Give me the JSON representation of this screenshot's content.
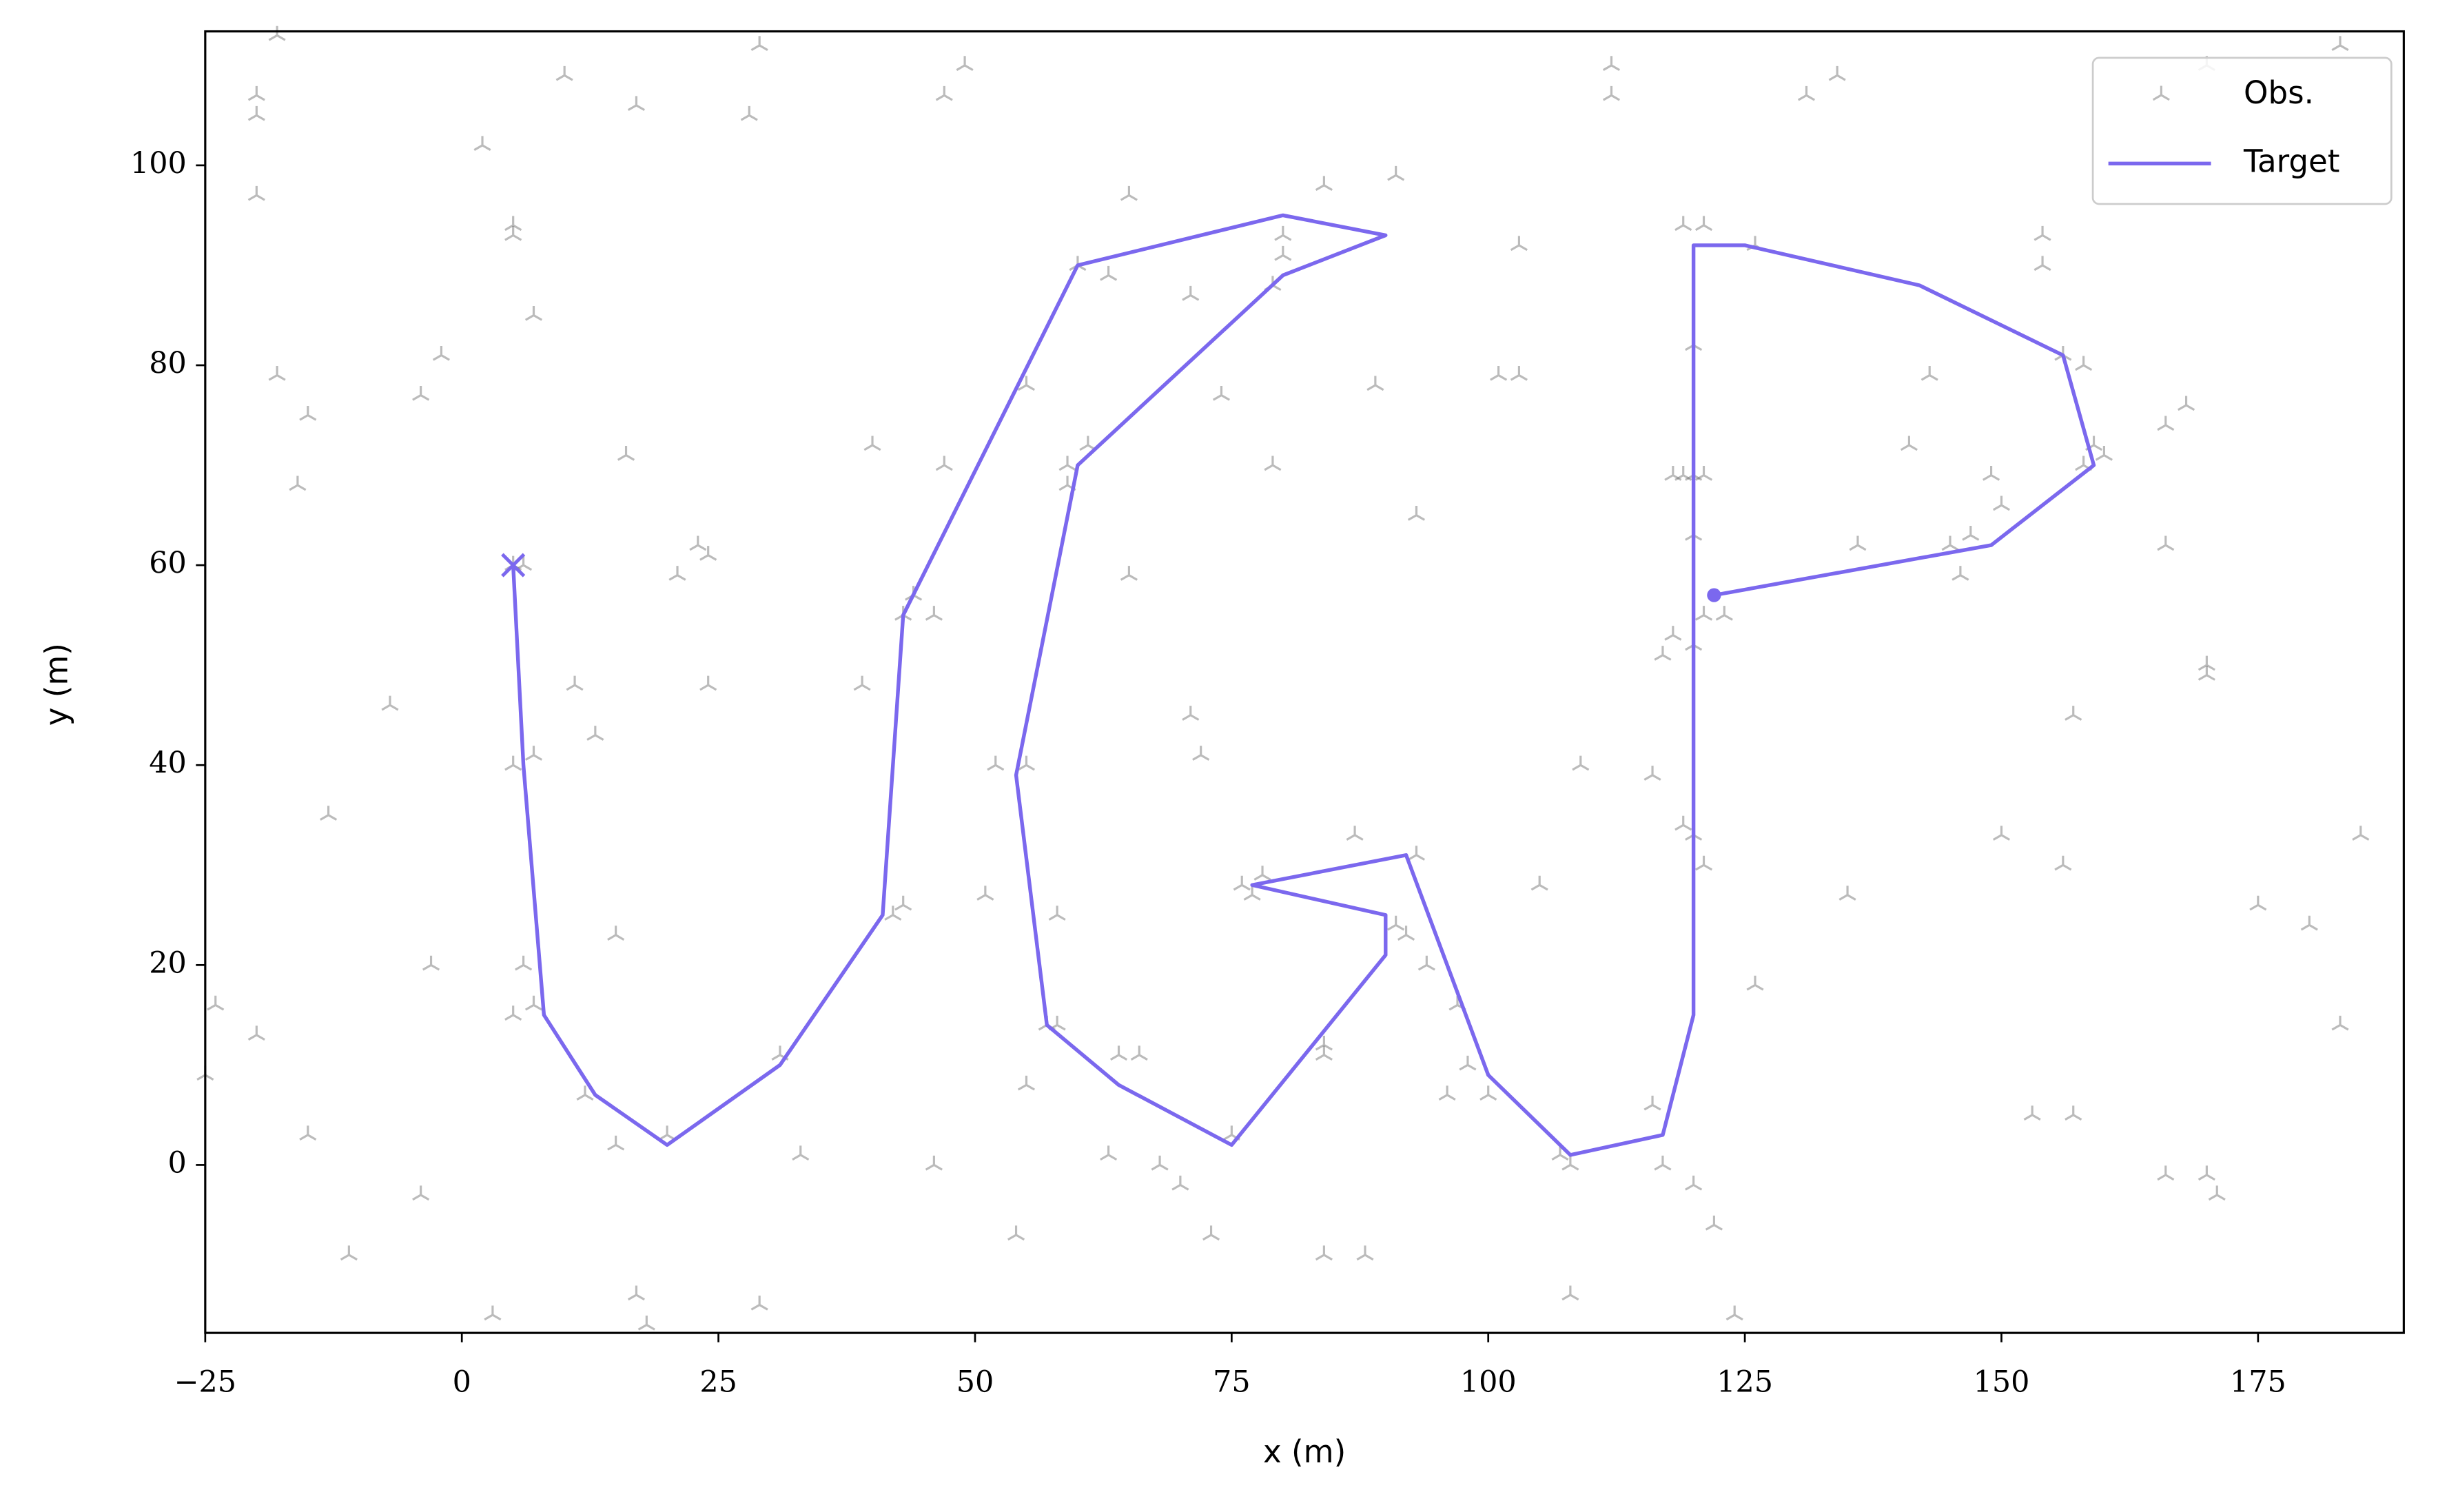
{
  "chart_data": {
    "type": "scatter",
    "xlabel": "x (m)",
    "ylabel": "y (m)",
    "xlim": [
      -25,
      189.2
    ],
    "ylim": [
      -16.8,
      113.4
    ],
    "xticks": [
      {
        "value": -25,
        "label": "−25"
      },
      0,
      25,
      50,
      75,
      100,
      125,
      150,
      175
    ],
    "yticks": [
      0,
      20,
      40,
      60,
      80,
      100
    ],
    "legend": "upper right",
    "series": [
      {
        "name": "Obs.",
        "type": "scatter",
        "marker": "tri_up",
        "color": "#555555",
        "x": [
          -18,
          -20,
          -20,
          -20,
          -18,
          -15,
          -16,
          -13,
          -7,
          -24,
          -20,
          -25,
          -15,
          -11,
          -4,
          -3,
          -4,
          -2,
          2,
          5,
          5,
          7,
          5,
          6,
          5,
          7,
          5,
          7,
          6,
          11,
          13,
          12,
          15,
          15,
          16,
          17,
          21,
          23,
          24,
          24,
          28,
          29,
          20,
          31,
          17,
          18,
          29,
          3,
          10,
          33,
          39,
          40,
          42,
          43,
          43,
          44,
          46,
          46,
          47,
          47,
          49,
          51,
          52,
          55,
          54,
          55,
          55,
          57,
          58,
          58,
          59,
          61,
          59,
          60,
          63,
          63,
          64,
          65,
          66,
          65,
          68,
          70,
          71,
          71,
          72,
          73,
          74,
          75,
          76,
          77,
          78,
          79,
          79,
          80,
          80,
          84,
          84,
          84,
          87,
          88,
          89,
          91,
          92,
          93,
          94,
          91,
          93,
          96,
          97,
          98,
          100,
          101,
          103,
          103,
          105,
          107,
          108,
          108,
          109,
          112,
          112,
          116,
          116,
          117,
          118,
          119,
          120,
          121,
          119,
          120,
          121,
          120,
          121,
          117,
          118,
          123,
          120,
          120,
          119,
          121,
          122,
          126,
          126,
          131,
          134,
          135,
          141,
          143,
          145,
          147,
          149,
          150,
          150,
          154,
          154,
          153,
          156,
          157,
          158,
          156,
          158,
          159,
          160,
          166,
          166,
          168,
          170,
          170,
          171,
          170,
          166,
          170,
          175,
          180,
          183,
          185,
          183,
          124,
          120,
          84,
          136,
          146,
          157
        ],
        "y": [
          113,
          107,
          105,
          97,
          79,
          75,
          68,
          35,
          46,
          16,
          13,
          9,
          3,
          -9,
          -3,
          20,
          77,
          81,
          102,
          94,
          93,
          85,
          60,
          60,
          40,
          41,
          15,
          16,
          20,
          48,
          43,
          7,
          23,
          2,
          71,
          106,
          59,
          62,
          61,
          48,
          105,
          112,
          3,
          11,
          -13,
          -16,
          -14,
          -15,
          109,
          1,
          48,
          72,
          25,
          26,
          55,
          57,
          55,
          0,
          107,
          70,
          110,
          27,
          40,
          40,
          -7,
          8,
          78,
          14,
          14,
          25,
          70,
          72,
          68,
          90,
          89,
          1,
          11,
          59,
          11,
          97,
          0,
          -2,
          87,
          45,
          41,
          -7,
          77,
          3,
          28,
          27,
          29,
          70,
          88,
          93,
          91,
          98,
          12,
          11,
          33,
          -9,
          78,
          24,
          23,
          31,
          20,
          99,
          65,
          7,
          16,
          10,
          7,
          79,
          79,
          92,
          28,
          1,
          -13,
          0,
          40,
          110,
          107,
          39,
          6,
          0,
          69,
          69,
          69,
          69,
          34,
          33,
          30,
          52,
          55,
          51,
          53,
          55,
          63,
          82,
          94,
          94,
          -6,
          92,
          18,
          107,
          109,
          27,
          72,
          79,
          62,
          63,
          69,
          66,
          33,
          93,
          90,
          5,
          30,
          45,
          80,
          81,
          70,
          72,
          71,
          74,
          62,
          76,
          50,
          49,
          -3,
          -1,
          -1,
          110,
          26,
          24,
          14,
          33,
          112,
          -15,
          -2,
          -9,
          62,
          59,
          5
        ]
      },
      {
        "name": "Target",
        "type": "line",
        "color": "#7b68ee",
        "start_marker": "x",
        "end_marker": "o",
        "x": [
          5,
          6,
          8,
          13,
          20,
          31,
          41,
          43,
          60,
          80,
          90,
          80,
          60,
          54,
          57,
          64,
          75,
          90,
          90,
          77,
          92,
          100,
          108,
          117,
          120,
          120,
          125,
          142,
          156,
          159,
          149,
          122
        ],
        "y": [
          60,
          40,
          15,
          7,
          2,
          10,
          25,
          55,
          90,
          95,
          93,
          89,
          70,
          39,
          14,
          8,
          2,
          21,
          25,
          28,
          31,
          9,
          1,
          3,
          15,
          92,
          92,
          88,
          81,
          70,
          62,
          57
        ]
      }
    ]
  }
}
